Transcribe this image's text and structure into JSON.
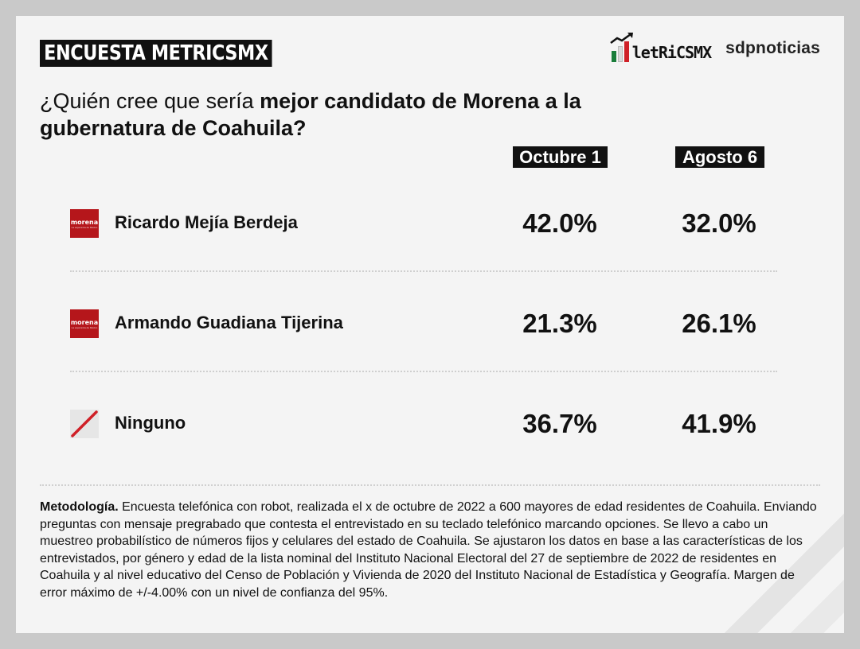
{
  "header": {
    "badge": "ENCUESTA METRICSMX",
    "logo_metrics": "letRiCSMX",
    "logo_sdp": "sdpnoticias"
  },
  "question": {
    "part1": "¿Quién cree que sería ",
    "bold": "mejor candidato de Morena a la gubernatura de Coahuila?"
  },
  "chart_data": {
    "type": "table",
    "columns": [
      "Octubre 1",
      "Agosto 6"
    ],
    "rows": [
      {
        "name": "Ricardo Mejía Berdeja",
        "party": "morena",
        "values": [
          "42.0%",
          "32.0%"
        ],
        "numeric": [
          42.0,
          32.0
        ]
      },
      {
        "name": "Armando Guadiana Tijerina",
        "party": "morena",
        "values": [
          "21.3%",
          "26.1%"
        ],
        "numeric": [
          21.3,
          26.1
        ]
      },
      {
        "name": "Ninguno",
        "party": "none",
        "values": [
          "36.7%",
          "41.9%"
        ],
        "numeric": [
          36.7,
          41.9
        ]
      }
    ]
  },
  "morena_logo": {
    "word": "morena",
    "sub": "La esperanza de México"
  },
  "colors": {
    "morena_red": "#b5161b",
    "flag_green": "#1a7d3a",
    "flag_red": "#cf2027",
    "badge_bg": "#111111"
  },
  "methodology": {
    "label": "Metodología.",
    "text": " Encuesta telefónica con robot, realizada el x de octubre de 2022 a 600 mayores de edad residentes de Coahuila. Enviando preguntas con mensaje pregrabado que contesta el entrevistado en su teclado telefónico marcando opciones. Se llevo a cabo un muestreo probabilístico de números fijos y celulares del estado de Coahuila. Se ajustaron los datos en base a las características de los entrevistados, por género y edad de la lista nominal del Instituto Nacional Electoral del 27 de septiembre de 2022 de residentes en Coahuila y al nivel educativo del Censo de Población y Vivienda de 2020 del Instituto Nacional de Estadística y Geografía. Margen de error máximo de +/-4.00% con un nivel de confianza del 95%."
  }
}
